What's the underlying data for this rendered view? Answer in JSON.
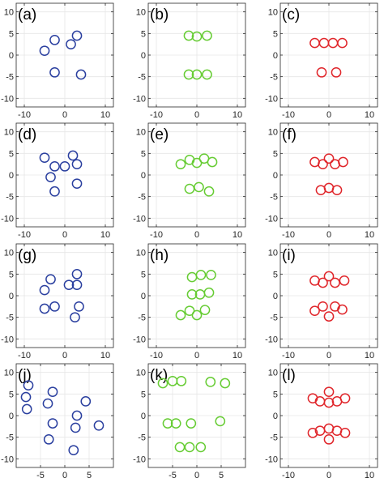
{
  "chart_data": [
    {
      "type": "scatter",
      "panel_label": "(a)",
      "color": "#2a3f9f",
      "xlim": [
        -12,
        12
      ],
      "ylim": [
        -12,
        12
      ],
      "xticks": [
        -10,
        0,
        10
      ],
      "yticks": [
        10,
        5,
        0,
        -5,
        -10
      ],
      "grid": true,
      "points": [
        [
          -2.5,
          3.5
        ],
        [
          3,
          4.5
        ],
        [
          -5,
          1
        ],
        [
          1.5,
          2.5
        ],
        [
          -2.5,
          -4
        ],
        [
          4,
          -4.5
        ]
      ]
    },
    {
      "type": "scatter",
      "panel_label": "(b)",
      "color": "#66cc33",
      "xlim": [
        -12,
        12
      ],
      "ylim": [
        -12,
        12
      ],
      "xticks": [
        -10,
        0,
        10
      ],
      "yticks": [
        10,
        5,
        0,
        -5,
        -10
      ],
      "grid": true,
      "points": [
        [
          -2,
          4.5
        ],
        [
          0,
          4.3
        ],
        [
          2.5,
          4.5
        ],
        [
          -2,
          -4.5
        ],
        [
          0,
          -4.5
        ],
        [
          2.5,
          -4.5
        ]
      ]
    },
    {
      "type": "scatter",
      "panel_label": "(c)",
      "color": "#e0262b",
      "xlim": [
        -12,
        12
      ],
      "ylim": [
        -12,
        12
      ],
      "xticks": [
        -10,
        0,
        10
      ],
      "yticks": [
        10,
        5,
        0,
        -5,
        -10
      ],
      "grid": true,
      "points": [
        [
          -3.5,
          2.8
        ],
        [
          -1.2,
          2.8
        ],
        [
          1,
          2.8
        ],
        [
          3.3,
          2.8
        ],
        [
          -1.8,
          -4
        ],
        [
          1.8,
          -4
        ]
      ]
    },
    {
      "type": "scatter",
      "panel_label": "(d)",
      "color": "#2a3f9f",
      "xlim": [
        -12,
        12
      ],
      "ylim": [
        -12,
        12
      ],
      "xticks": [
        -10,
        0,
        10
      ],
      "yticks": [
        10,
        5,
        0,
        -5,
        -10
      ],
      "grid": true,
      "points": [
        [
          -5,
          4
        ],
        [
          2,
          4.5
        ],
        [
          -2.5,
          2
        ],
        [
          0,
          2
        ],
        [
          3,
          2.5
        ],
        [
          -3.5,
          -0.5
        ],
        [
          3,
          -2
        ],
        [
          -2.5,
          -3.8
        ]
      ]
    },
    {
      "type": "scatter",
      "panel_label": "(e)",
      "color": "#66cc33",
      "xlim": [
        -12,
        12
      ],
      "ylim": [
        -12,
        12
      ],
      "xticks": [
        -10,
        0,
        10
      ],
      "yticks": [
        10,
        5,
        0,
        -5,
        -10
      ],
      "grid": true,
      "points": [
        [
          -4,
          2.5
        ],
        [
          -1.8,
          3.5
        ],
        [
          0,
          2.8
        ],
        [
          1.8,
          3.8
        ],
        [
          3.8,
          3
        ],
        [
          -1.8,
          -3.2
        ],
        [
          0.5,
          -2.8
        ],
        [
          3,
          -3.8
        ]
      ]
    },
    {
      "type": "scatter",
      "panel_label": "(f)",
      "color": "#e0262b",
      "xlim": [
        -12,
        12
      ],
      "ylim": [
        -12,
        12
      ],
      "xticks": [
        -10,
        0,
        10
      ],
      "yticks": [
        10,
        5,
        0,
        -5,
        -10
      ],
      "grid": true,
      "points": [
        [
          -3.5,
          3
        ],
        [
          -1.5,
          2.5
        ],
        [
          0,
          3.8
        ],
        [
          1.5,
          2.5
        ],
        [
          3.5,
          3
        ],
        [
          -2,
          -3.5
        ],
        [
          0,
          -3
        ],
        [
          2,
          -3.5
        ]
      ]
    },
    {
      "type": "scatter",
      "panel_label": "(g)",
      "color": "#2a3f9f",
      "xlim": [
        -12,
        12
      ],
      "ylim": [
        -12,
        12
      ],
      "xticks": [
        -10,
        0,
        10
      ],
      "yticks": [
        10,
        5,
        0,
        -5,
        -10
      ],
      "grid": true,
      "points": [
        [
          -3.5,
          3.8
        ],
        [
          3,
          5
        ],
        [
          -5,
          1.3
        ],
        [
          1,
          2.5
        ],
        [
          3,
          2.5
        ],
        [
          -5,
          -3
        ],
        [
          -2.5,
          -2.5
        ],
        [
          3.5,
          -2.5
        ],
        [
          2.5,
          -5
        ]
      ]
    },
    {
      "type": "scatter",
      "panel_label": "(h)",
      "color": "#66cc33",
      "xlim": [
        -12,
        12
      ],
      "ylim": [
        -12,
        12
      ],
      "xticks": [
        -10,
        0,
        10
      ],
      "yticks": [
        10,
        5,
        0,
        -5,
        -10
      ],
      "grid": true,
      "points": [
        [
          -1.2,
          4.3
        ],
        [
          1,
          4.8
        ],
        [
          3.5,
          4.8
        ],
        [
          -1.2,
          0.3
        ],
        [
          0.8,
          0.3
        ],
        [
          3,
          0.7
        ],
        [
          -4,
          -4.5
        ],
        [
          -1.8,
          -3.5
        ],
        [
          0,
          -4.5
        ],
        [
          2,
          -3.3
        ]
      ]
    },
    {
      "type": "scatter",
      "panel_label": "(i)",
      "color": "#e0262b",
      "xlim": [
        -12,
        12
      ],
      "ylim": [
        -12,
        12
      ],
      "xticks": [
        -10,
        0,
        10
      ],
      "yticks": [
        10,
        5,
        0,
        -5,
        -10
      ],
      "grid": true,
      "points": [
        [
          -3.5,
          3.5
        ],
        [
          -1.5,
          3
        ],
        [
          0,
          4.5
        ],
        [
          1.5,
          3
        ],
        [
          3.8,
          3.5
        ],
        [
          -3.5,
          -3.5
        ],
        [
          -1.5,
          -2.5
        ],
        [
          0,
          -4.8
        ],
        [
          1.5,
          -2.5
        ],
        [
          3.3,
          -3.2
        ]
      ]
    },
    {
      "type": "scatter",
      "panel_label": "(j)",
      "color": "#2a3f9f",
      "xlim": [
        -10,
        10
      ],
      "ylim": [
        -12,
        12
      ],
      "xticks": [
        -5,
        0,
        5
      ],
      "yticks": [
        10,
        5,
        0,
        -5,
        -10
      ],
      "grid": true,
      "points": [
        [
          -7.5,
          7
        ],
        [
          -8,
          4.3
        ],
        [
          -2.5,
          5.5
        ],
        [
          4.3,
          3.3
        ],
        [
          -7.8,
          1.5
        ],
        [
          -3.5,
          2.8
        ],
        [
          2.5,
          0
        ],
        [
          -2.5,
          -1.8
        ],
        [
          2.2,
          -2.8
        ],
        [
          7,
          -2.3
        ],
        [
          -3.3,
          -5.5
        ],
        [
          1.8,
          -8
        ]
      ]
    },
    {
      "type": "scatter",
      "panel_label": "(k)",
      "color": "#66cc33",
      "xlim": [
        -10,
        10
      ],
      "ylim": [
        -12,
        12
      ],
      "xticks": [
        -5,
        0,
        5
      ],
      "yticks": [
        10,
        5,
        0,
        -5,
        -10
      ],
      "grid": true,
      "points": [
        [
          -7,
          7.5
        ],
        [
          -5,
          8
        ],
        [
          -3.2,
          8
        ],
        [
          2.8,
          7.8
        ],
        [
          5.8,
          7.5
        ],
        [
          -6,
          -1.8
        ],
        [
          -4.3,
          -1.8
        ],
        [
          -1.2,
          -1.8
        ],
        [
          4.8,
          -1.3
        ],
        [
          -3.5,
          -7.3
        ],
        [
          -1.5,
          -7.3
        ],
        [
          0.8,
          -7.3
        ]
      ]
    },
    {
      "type": "scatter",
      "panel_label": "(l)",
      "color": "#e0262b",
      "xlim": [
        -12,
        12
      ],
      "ylim": [
        -12,
        12
      ],
      "xticks": [
        -10,
        0,
        10
      ],
      "yticks": [
        10,
        5,
        0,
        -5,
        -10
      ],
      "grid": true,
      "points": [
        [
          -4,
          4
        ],
        [
          -2.2,
          3.3
        ],
        [
          0,
          5.5
        ],
        [
          0,
          3
        ],
        [
          2,
          3.3
        ],
        [
          4,
          4
        ],
        [
          -4,
          -4
        ],
        [
          -2.2,
          -3.5
        ],
        [
          0,
          -5.5
        ],
        [
          0,
          -3
        ],
        [
          2,
          -3.5
        ],
        [
          4,
          -4
        ]
      ]
    }
  ]
}
